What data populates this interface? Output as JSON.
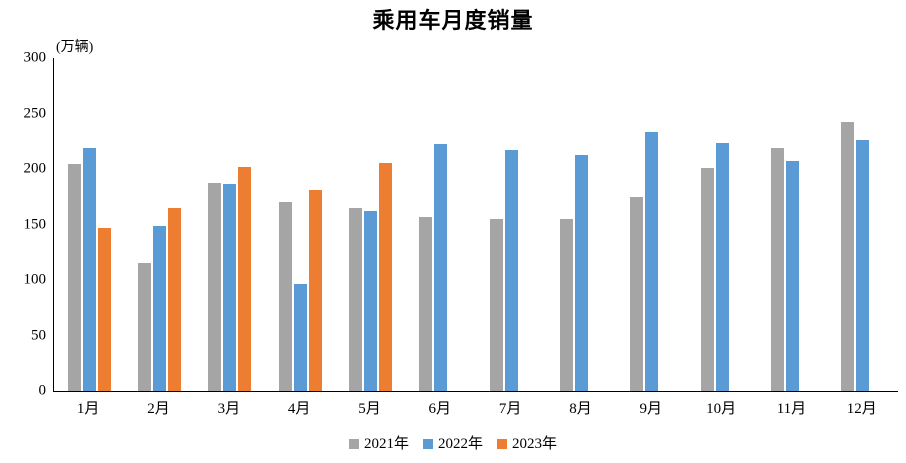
{
  "title": "乘用车月度销量",
  "unit_label": "(万辆)",
  "colors": {
    "series_2021": "#A5A5A5",
    "series_2022": "#5B9BD5",
    "series_2023": "#ED7D31",
    "axis": "#000000",
    "text": "#000000",
    "background": "#FFFFFF"
  },
  "chart_data": {
    "type": "bar",
    "title": "乘用车月度销量",
    "ylabel": "(万辆)",
    "xlabel": "",
    "categories": [
      "1月",
      "2月",
      "3月",
      "4月",
      "5月",
      "6月",
      "7月",
      "8月",
      "9月",
      "10月",
      "11月",
      "12月"
    ],
    "series": [
      {
        "name": "2021年",
        "color": "#A5A5A5",
        "values": [
          204.5,
          115.6,
          187.4,
          170.4,
          164.6,
          156.9,
          155.1,
          155.2,
          175.1,
          200.7,
          219.2,
          242.2
        ]
      },
      {
        "name": "2022年",
        "color": "#5B9BD5",
        "values": [
          218.6,
          148.7,
          186.4,
          96.5,
          162.3,
          222.2,
          217.4,
          212.5,
          233.2,
          223.1,
          207.5,
          226.3
        ]
      },
      {
        "name": "2023年",
        "color": "#ED7D31",
        "values": [
          146.9,
          165.3,
          201.7,
          181.1,
          205.1,
          null,
          null,
          null,
          null,
          null,
          null,
          null
        ]
      }
    ],
    "ylim": [
      0,
      300
    ],
    "yticks": [
      0,
      50,
      100,
      150,
      200,
      250,
      300
    ],
    "grid": false,
    "legend_position": "bottom"
  }
}
